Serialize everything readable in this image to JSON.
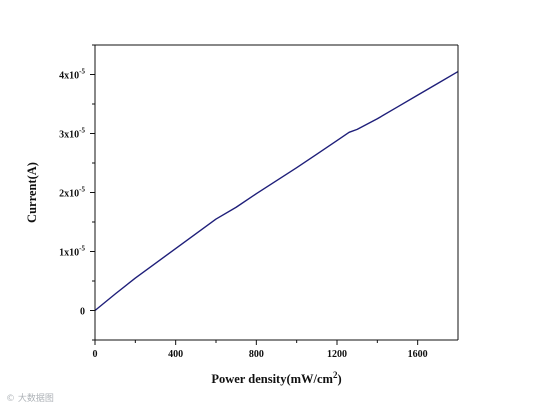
{
  "chart_data": {
    "type": "line",
    "xlabel": "Power density(mW/cm",
    "xlabel_sup": "2",
    "xlabel_suffix": ")",
    "ylabel": "Current(A)",
    "xlim": [
      0,
      1800
    ],
    "ylim": [
      -0.5,
      4.5
    ],
    "y_exponent": -5,
    "x_ticks": [
      {
        "value": 0,
        "label": "0"
      },
      {
        "value": 400,
        "label": "400"
      },
      {
        "value": 800,
        "label": "800"
      },
      {
        "value": 1200,
        "label": "1200"
      },
      {
        "value": 1600,
        "label": "1600"
      }
    ],
    "y_ticks": [
      {
        "value": 0,
        "label": "0"
      },
      {
        "value": 1,
        "label": "1x10",
        "sup": "-5"
      },
      {
        "value": 2,
        "label": "2x10",
        "sup": "-5"
      },
      {
        "value": 3,
        "label": "3x10",
        "sup": "-5"
      },
      {
        "value": 4,
        "label": "4x10",
        "sup": "-5"
      }
    ],
    "series": [
      {
        "color": "#1f1f7a",
        "x": [
          0,
          100,
          200,
          300,
          400,
          500,
          600,
          700,
          800,
          900,
          1000,
          1100,
          1200,
          1260,
          1300,
          1400,
          1500,
          1600,
          1700,
          1800
        ],
        "y": [
          0,
          0.28,
          0.55,
          0.8,
          1.05,
          1.3,
          1.55,
          1.75,
          1.98,
          2.2,
          2.42,
          2.65,
          2.88,
          3.02,
          3.07,
          3.25,
          3.45,
          3.65,
          3.85,
          4.05
        ]
      }
    ]
  },
  "watermark": "© 大数据图"
}
